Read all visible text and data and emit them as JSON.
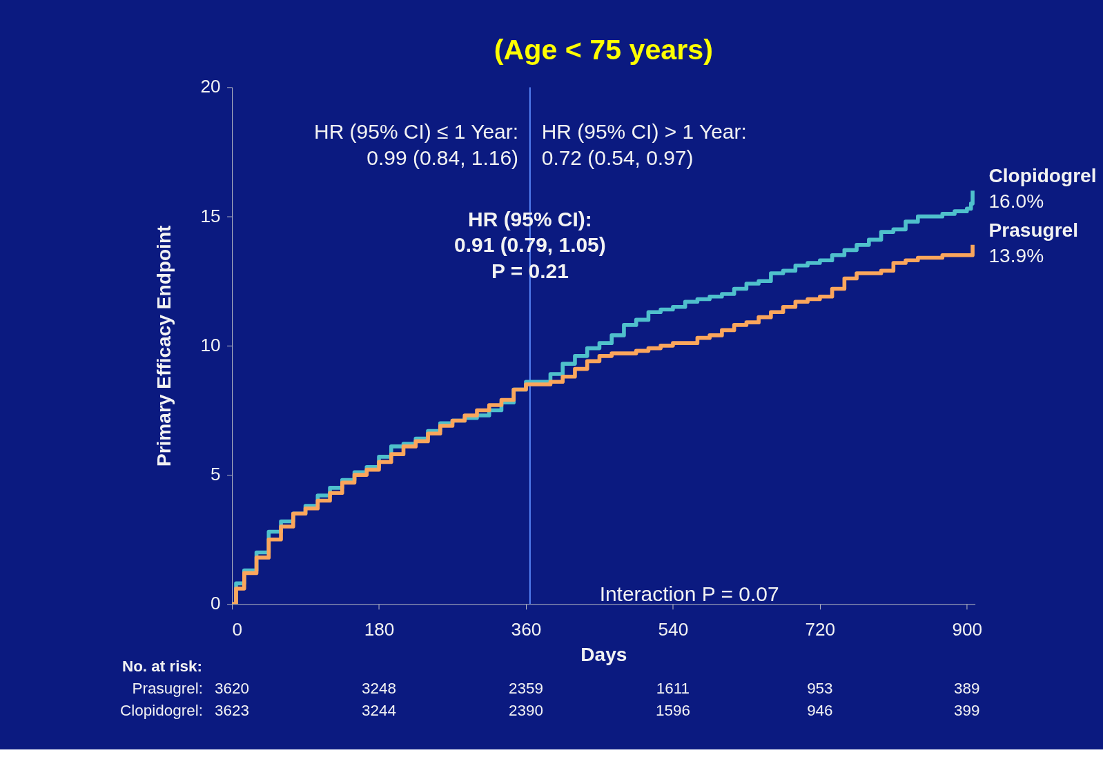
{
  "chart_data": {
    "type": "step",
    "title": "(Age < 75 years)",
    "xlabel": "Days",
    "ylabel": "Primary Efficacy Endpoint",
    "xlim": [
      0,
      910
    ],
    "xticks": [
      0,
      180,
      360,
      540,
      720,
      900
    ],
    "ylim": [
      0,
      20
    ],
    "yticks": [
      0,
      5,
      10,
      15,
      20
    ],
    "grid": false,
    "legend": false,
    "ref_lines": [
      {
        "axis": "x",
        "value": 365,
        "color": "#5b8cff"
      }
    ],
    "annotations": [
      "HR (95% CI) ≤ 1 Year:\n0.99 (0.84, 1.16)",
      "HR (95% CI) > 1 Year:\n0.72 (0.54, 0.97)",
      "HR (95% CI):\n0.91 (0.79, 1.05)\nP = 0.21",
      "Interaction P = 0.07",
      "No. at risk:",
      "Prasugrel:",
      "Clopidogrel:",
      "3620",
      "3248",
      "2359",
      "1611",
      "953",
      "389",
      "3623",
      "3244",
      "2390",
      "1596",
      "946",
      "399"
    ],
    "series": [
      {
        "name": "Clopidogrel",
        "color": "#4fc0cc",
        "x": [
          0,
          5,
          15,
          30,
          45,
          60,
          75,
          90,
          105,
          120,
          135,
          150,
          165,
          180,
          195,
          210,
          225,
          240,
          255,
          270,
          285,
          300,
          315,
          330,
          345,
          360,
          375,
          390,
          405,
          420,
          435,
          450,
          465,
          480,
          495,
          510,
          525,
          540,
          555,
          570,
          585,
          600,
          615,
          630,
          645,
          660,
          675,
          690,
          705,
          720,
          735,
          750,
          765,
          780,
          795,
          810,
          825,
          840,
          855,
          870,
          885,
          900,
          905,
          907
        ],
        "values": [
          0,
          0.8,
          1.3,
          2.0,
          2.8,
          3.2,
          3.5,
          3.8,
          4.2,
          4.5,
          4.8,
          5.1,
          5.3,
          5.7,
          6.1,
          6.2,
          6.4,
          6.7,
          7.0,
          7.1,
          7.2,
          7.3,
          7.5,
          7.8,
          8.3,
          8.6,
          8.6,
          8.9,
          9.3,
          9.6,
          9.9,
          10.1,
          10.4,
          10.8,
          11.0,
          11.3,
          11.4,
          11.5,
          11.7,
          11.8,
          11.9,
          12.0,
          12.2,
          12.4,
          12.5,
          12.8,
          12.9,
          13.1,
          13.2,
          13.3,
          13.5,
          13.7,
          13.9,
          14.1,
          14.4,
          14.5,
          14.8,
          15.0,
          15.0,
          15.1,
          15.2,
          15.3,
          15.5,
          16.0
        ],
        "value_labels": [
          null,
          null,
          null,
          null,
          null,
          null,
          null,
          null,
          null,
          null,
          null,
          null,
          null,
          null,
          null,
          null,
          null,
          null,
          null,
          null,
          null,
          null,
          null,
          null,
          null,
          null,
          null,
          null,
          null,
          null,
          null,
          null,
          null,
          null,
          null,
          null,
          null,
          null,
          null,
          null,
          null,
          null,
          null,
          null,
          null,
          null,
          null,
          null,
          null,
          null,
          null,
          null,
          null,
          null,
          null,
          null,
          null,
          null,
          null,
          null,
          null,
          null,
          null,
          "16.0%"
        ]
      },
      {
        "name": "Prasugrel",
        "color": "#fba65c",
        "x": [
          0,
          5,
          15,
          30,
          45,
          60,
          75,
          90,
          105,
          120,
          135,
          150,
          165,
          180,
          195,
          210,
          225,
          240,
          255,
          270,
          285,
          300,
          315,
          330,
          345,
          360,
          375,
          390,
          405,
          420,
          435,
          450,
          465,
          480,
          495,
          510,
          525,
          540,
          555,
          570,
          585,
          600,
          615,
          630,
          645,
          660,
          675,
          690,
          705,
          720,
          735,
          750,
          765,
          780,
          795,
          810,
          825,
          840,
          855,
          870,
          885,
          900,
          905,
          907
        ],
        "values": [
          0,
          0.6,
          1.2,
          1.8,
          2.5,
          3.0,
          3.5,
          3.7,
          4.0,
          4.3,
          4.7,
          5.0,
          5.2,
          5.5,
          5.8,
          6.1,
          6.3,
          6.6,
          6.9,
          7.1,
          7.3,
          7.5,
          7.7,
          7.9,
          8.3,
          8.5,
          8.5,
          8.6,
          8.8,
          9.1,
          9.4,
          9.6,
          9.7,
          9.7,
          9.8,
          9.9,
          10.0,
          10.1,
          10.1,
          10.3,
          10.4,
          10.6,
          10.8,
          10.9,
          11.1,
          11.3,
          11.5,
          11.7,
          11.8,
          11.9,
          12.2,
          12.6,
          12.8,
          12.8,
          12.9,
          13.2,
          13.3,
          13.4,
          13.4,
          13.5,
          13.5,
          13.5,
          13.5,
          13.9
        ],
        "value_labels": [
          null,
          null,
          null,
          null,
          null,
          null,
          null,
          null,
          null,
          null,
          null,
          null,
          null,
          null,
          null,
          null,
          null,
          null,
          null,
          null,
          null,
          null,
          null,
          null,
          null,
          null,
          null,
          null,
          null,
          null,
          null,
          null,
          null,
          null,
          null,
          null,
          null,
          null,
          null,
          null,
          null,
          null,
          null,
          null,
          null,
          null,
          null,
          null,
          null,
          null,
          null,
          null,
          null,
          null,
          null,
          null,
          null,
          null,
          null,
          null,
          null,
          null,
          null,
          "13.9%"
        ]
      }
    ]
  }
}
